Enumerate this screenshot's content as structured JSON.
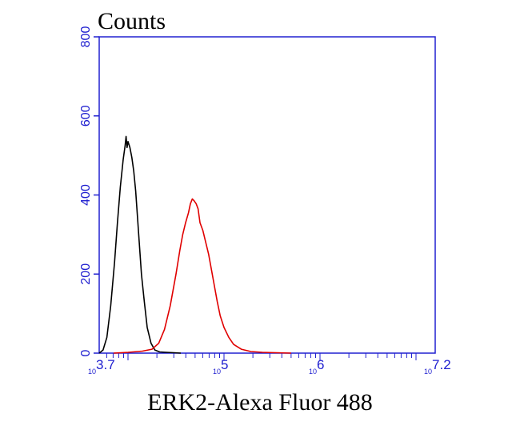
{
  "chart_data": {
    "type": "line",
    "title": "",
    "ylabel": "Counts",
    "xlabel": "ERK2-Alexa Fluor 488",
    "x_scale": "log",
    "xlim_log10": [
      3.7,
      7.2
    ],
    "ylim": [
      0,
      800
    ],
    "grid": false,
    "y_ticks": [
      {
        "value": 0,
        "label": "0"
      },
      {
        "value": 200,
        "label": "200"
      },
      {
        "value": 400,
        "label": "400"
      },
      {
        "value": 600,
        "label": "600"
      },
      {
        "value": 800,
        "label": "800"
      }
    ],
    "x_ticks": [
      {
        "log10": 3.7,
        "base": "10",
        "exp": "3.7"
      },
      {
        "log10": 5,
        "base": "10",
        "exp": "5"
      },
      {
        "log10": 6,
        "base": "10",
        "exp": "6"
      },
      {
        "log10": 7.2,
        "base": "10",
        "exp": "7.2"
      }
    ],
    "series": [
      {
        "color": "#000000",
        "points_log10x": [
          [
            3.7,
            0
          ],
          [
            3.74,
            8
          ],
          [
            3.78,
            40
          ],
          [
            3.82,
            120
          ],
          [
            3.86,
            230
          ],
          [
            3.89,
            330
          ],
          [
            3.92,
            420
          ],
          [
            3.95,
            490
          ],
          [
            3.97,
            525
          ],
          [
            3.98,
            548
          ],
          [
            3.99,
            520
          ],
          [
            4.0,
            535
          ],
          [
            4.02,
            520
          ],
          [
            4.04,
            495
          ],
          [
            4.06,
            460
          ],
          [
            4.08,
            410
          ],
          [
            4.1,
            340
          ],
          [
            4.12,
            270
          ],
          [
            4.14,
            200
          ],
          [
            4.17,
            130
          ],
          [
            4.2,
            65
          ],
          [
            4.24,
            25
          ],
          [
            4.28,
            8
          ],
          [
            4.33,
            3
          ],
          [
            4.4,
            2
          ],
          [
            4.48,
            1
          ],
          [
            4.55,
            0
          ]
        ]
      },
      {
        "color": "#e00000",
        "points_log10x": [
          [
            3.85,
            0
          ],
          [
            4.0,
            2
          ],
          [
            4.15,
            5
          ],
          [
            4.25,
            10
          ],
          [
            4.32,
            25
          ],
          [
            4.38,
            60
          ],
          [
            4.44,
            120
          ],
          [
            4.5,
            200
          ],
          [
            4.54,
            260
          ],
          [
            4.57,
            300
          ],
          [
            4.6,
            330
          ],
          [
            4.63,
            355
          ],
          [
            4.65,
            378
          ],
          [
            4.67,
            390
          ],
          [
            4.69,
            385
          ],
          [
            4.71,
            378
          ],
          [
            4.73,
            365
          ],
          [
            4.75,
            330
          ],
          [
            4.78,
            310
          ],
          [
            4.81,
            280
          ],
          [
            4.84,
            250
          ],
          [
            4.87,
            210
          ],
          [
            4.9,
            170
          ],
          [
            4.93,
            130
          ],
          [
            4.96,
            95
          ],
          [
            5.0,
            65
          ],
          [
            5.05,
            40
          ],
          [
            5.1,
            22
          ],
          [
            5.18,
            10
          ],
          [
            5.28,
            4
          ],
          [
            5.4,
            2
          ],
          [
            5.55,
            1
          ],
          [
            5.7,
            0
          ]
        ]
      }
    ]
  }
}
